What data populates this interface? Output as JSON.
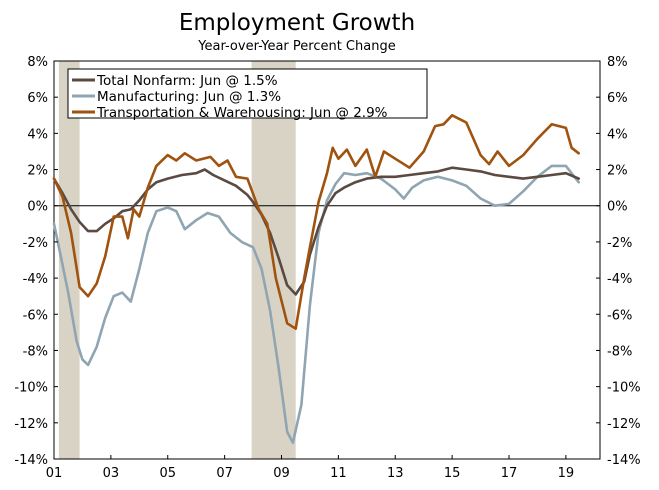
{
  "chart_data": {
    "type": "line",
    "title": "Employment Growth",
    "subtitle": "Year-over-Year Percent Change",
    "x_tick_labels": [
      "01",
      "03",
      "05",
      "07",
      "09",
      "11",
      "13",
      "15",
      "17",
      "19"
    ],
    "x_tick_values": [
      2001,
      2003,
      2005,
      2007,
      2009,
      2011,
      2013,
      2015,
      2017,
      2019
    ],
    "xlim": [
      2001,
      2020.2
    ],
    "y_tick_labels": [
      "8%",
      "6%",
      "4%",
      "2%",
      "0%",
      "-2%",
      "-4%",
      "-6%",
      "-8%",
      "-10%",
      "-12%",
      "-14%"
    ],
    "y_tick_values": [
      8,
      6,
      4,
      2,
      0,
      -2,
      -4,
      -6,
      -8,
      -10,
      -12,
      -14
    ],
    "ylim": [
      -14,
      8
    ],
    "grid": false,
    "zero_line": true,
    "legend_position": "top-left",
    "recession_shading": [
      [
        2001.17,
        2001.9
      ],
      [
        2007.95,
        2009.5
      ]
    ],
    "colors": {
      "recession": "#d9d3c6",
      "Total Nonfarm": "#5a4a42",
      "Manufacturing": "#8fa5b2",
      "Transportation & Warehousing": "#a0520f"
    },
    "series": [
      {
        "name": "Total Nonfarm: Jun @ 1.5%",
        "key": "Total Nonfarm",
        "points": [
          [
            2001.0,
            1.5
          ],
          [
            2001.3,
            0.7
          ],
          [
            2001.6,
            -0.2
          ],
          [
            2001.9,
            -0.9
          ],
          [
            2002.2,
            -1.4
          ],
          [
            2002.5,
            -1.4
          ],
          [
            2002.8,
            -1.0
          ],
          [
            2003.1,
            -0.7
          ],
          [
            2003.4,
            -0.3
          ],
          [
            2003.7,
            -0.2
          ],
          [
            2004.0,
            0.3
          ],
          [
            2004.3,
            0.9
          ],
          [
            2004.6,
            1.3
          ],
          [
            2005.0,
            1.5
          ],
          [
            2005.5,
            1.7
          ],
          [
            2006.0,
            1.8
          ],
          [
            2006.3,
            2.0
          ],
          [
            2006.6,
            1.7
          ],
          [
            2007.0,
            1.4
          ],
          [
            2007.4,
            1.1
          ],
          [
            2007.8,
            0.6
          ],
          [
            2008.0,
            0.2
          ],
          [
            2008.3,
            -0.5
          ],
          [
            2008.6,
            -1.5
          ],
          [
            2008.9,
            -2.9
          ],
          [
            2009.2,
            -4.4
          ],
          [
            2009.5,
            -4.9
          ],
          [
            2009.8,
            -4.2
          ],
          [
            2010.0,
            -2.7
          ],
          [
            2010.3,
            -1.2
          ],
          [
            2010.6,
            0.0
          ],
          [
            2010.9,
            0.7
          ],
          [
            2011.2,
            1.0
          ],
          [
            2011.6,
            1.3
          ],
          [
            2012.0,
            1.5
          ],
          [
            2012.5,
            1.6
          ],
          [
            2013.0,
            1.6
          ],
          [
            2013.5,
            1.7
          ],
          [
            2014.0,
            1.8
          ],
          [
            2014.5,
            1.9
          ],
          [
            2015.0,
            2.1
          ],
          [
            2015.5,
            2.0
          ],
          [
            2016.0,
            1.9
          ],
          [
            2016.5,
            1.7
          ],
          [
            2017.0,
            1.6
          ],
          [
            2017.5,
            1.5
          ],
          [
            2018.0,
            1.6
          ],
          [
            2018.5,
            1.7
          ],
          [
            2019.0,
            1.8
          ],
          [
            2019.3,
            1.6
          ],
          [
            2019.45,
            1.5
          ]
        ]
      },
      {
        "name": "Manufacturing: Jun @ 1.3%",
        "key": "Manufacturing",
        "points": [
          [
            2001.0,
            -1.0
          ],
          [
            2001.2,
            -2.5
          ],
          [
            2001.5,
            -4.8
          ],
          [
            2001.8,
            -7.5
          ],
          [
            2002.0,
            -8.5
          ],
          [
            2002.2,
            -8.8
          ],
          [
            2002.5,
            -7.8
          ],
          [
            2002.8,
            -6.2
          ],
          [
            2003.1,
            -5.0
          ],
          [
            2003.4,
            -4.8
          ],
          [
            2003.7,
            -5.3
          ],
          [
            2004.0,
            -3.5
          ],
          [
            2004.3,
            -1.5
          ],
          [
            2004.6,
            -0.3
          ],
          [
            2005.0,
            -0.1
          ],
          [
            2005.3,
            -0.3
          ],
          [
            2005.6,
            -1.3
          ],
          [
            2006.0,
            -0.8
          ],
          [
            2006.4,
            -0.4
          ],
          [
            2006.8,
            -0.6
          ],
          [
            2007.2,
            -1.5
          ],
          [
            2007.6,
            -2.0
          ],
          [
            2008.0,
            -2.3
          ],
          [
            2008.3,
            -3.5
          ],
          [
            2008.6,
            -5.8
          ],
          [
            2008.9,
            -9.0
          ],
          [
            2009.2,
            -12.5
          ],
          [
            2009.4,
            -13.1
          ],
          [
            2009.7,
            -11.0
          ],
          [
            2010.0,
            -5.5
          ],
          [
            2010.3,
            -1.5
          ],
          [
            2010.6,
            0.3
          ],
          [
            2010.9,
            1.2
          ],
          [
            2011.2,
            1.8
          ],
          [
            2011.6,
            1.7
          ],
          [
            2012.0,
            1.8
          ],
          [
            2012.5,
            1.5
          ],
          [
            2013.0,
            0.9
          ],
          [
            2013.3,
            0.4
          ],
          [
            2013.6,
            1.0
          ],
          [
            2014.0,
            1.4
          ],
          [
            2014.5,
            1.6
          ],
          [
            2015.0,
            1.4
          ],
          [
            2015.5,
            1.1
          ],
          [
            2016.0,
            0.4
          ],
          [
            2016.5,
            0.0
          ],
          [
            2017.0,
            0.1
          ],
          [
            2017.5,
            0.8
          ],
          [
            2018.0,
            1.6
          ],
          [
            2018.5,
            2.2
          ],
          [
            2019.0,
            2.2
          ],
          [
            2019.3,
            1.6
          ],
          [
            2019.45,
            1.3
          ]
        ]
      },
      {
        "name": "Transportation & Warehousing: Jun @ 2.9%",
        "key": "Transportation & Warehousing",
        "points": [
          [
            2001.0,
            1.5
          ],
          [
            2001.3,
            0.5
          ],
          [
            2001.6,
            -1.5
          ],
          [
            2001.9,
            -4.5
          ],
          [
            2002.2,
            -5.0
          ],
          [
            2002.5,
            -4.3
          ],
          [
            2002.8,
            -2.8
          ],
          [
            2003.1,
            -0.6
          ],
          [
            2003.4,
            -0.6
          ],
          [
            2003.6,
            -1.8
          ],
          [
            2003.8,
            -0.2
          ],
          [
            2004.0,
            -0.6
          ],
          [
            2004.3,
            1.0
          ],
          [
            2004.6,
            2.2
          ],
          [
            2005.0,
            2.8
          ],
          [
            2005.3,
            2.5
          ],
          [
            2005.6,
            2.9
          ],
          [
            2006.0,
            2.5
          ],
          [
            2006.5,
            2.7
          ],
          [
            2006.8,
            2.2
          ],
          [
            2007.1,
            2.5
          ],
          [
            2007.4,
            1.6
          ],
          [
            2007.8,
            1.5
          ],
          [
            2008.2,
            -0.2
          ],
          [
            2008.5,
            -1.0
          ],
          [
            2008.8,
            -4.0
          ],
          [
            2009.2,
            -6.5
          ],
          [
            2009.5,
            -6.8
          ],
          [
            2009.8,
            -4.0
          ],
          [
            2010.0,
            -2.3
          ],
          [
            2010.3,
            0.2
          ],
          [
            2010.6,
            1.8
          ],
          [
            2010.8,
            3.2
          ],
          [
            2011.0,
            2.6
          ],
          [
            2011.3,
            3.1
          ],
          [
            2011.6,
            2.2
          ],
          [
            2012.0,
            3.1
          ],
          [
            2012.3,
            1.6
          ],
          [
            2012.6,
            3.0
          ],
          [
            2013.0,
            2.6
          ],
          [
            2013.5,
            2.1
          ],
          [
            2014.0,
            3.0
          ],
          [
            2014.4,
            4.4
          ],
          [
            2014.7,
            4.5
          ],
          [
            2015.0,
            5.0
          ],
          [
            2015.5,
            4.6
          ],
          [
            2016.0,
            2.8
          ],
          [
            2016.3,
            2.3
          ],
          [
            2016.6,
            3.0
          ],
          [
            2017.0,
            2.2
          ],
          [
            2017.5,
            2.8
          ],
          [
            2018.0,
            3.7
          ],
          [
            2018.5,
            4.5
          ],
          [
            2019.0,
            4.3
          ],
          [
            2019.2,
            3.2
          ],
          [
            2019.45,
            2.9
          ]
        ]
      }
    ]
  }
}
